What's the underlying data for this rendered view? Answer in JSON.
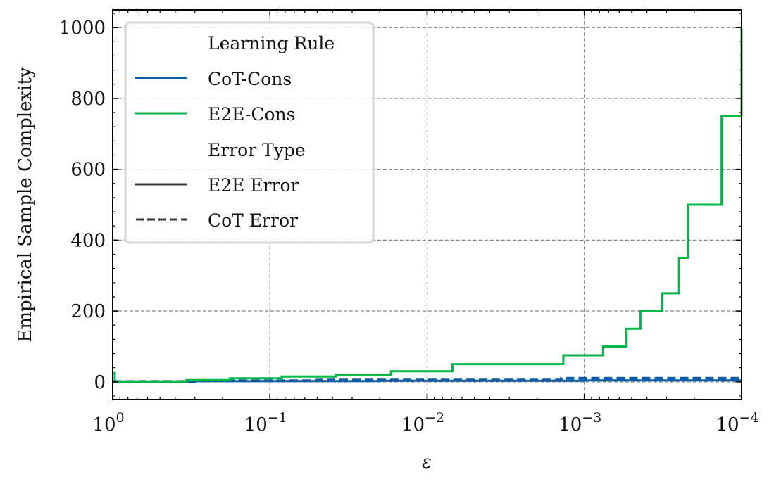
{
  "chart_data": {
    "type": "line",
    "title": "",
    "xlabel": "ε",
    "ylabel": "Empirical Sample Complexity",
    "xscale": "log",
    "x_reversed": true,
    "xlim": [
      1,
      0.0001
    ],
    "ylim": [
      -50,
      1050
    ],
    "grid": true,
    "legend_position": "top-left",
    "x_ticks": [
      {
        "value": 1,
        "mant": "10",
        "exp": "0"
      },
      {
        "value": 0.1,
        "mant": "10",
        "exp": "−1"
      },
      {
        "value": 0.01,
        "mant": "10",
        "exp": "−2"
      },
      {
        "value": 0.001,
        "mant": "10",
        "exp": "−3"
      },
      {
        "value": 0.0001,
        "mant": "10",
        "exp": "−4"
      }
    ],
    "y_ticks": [
      0,
      200,
      400,
      600,
      800,
      1000
    ],
    "legend": {
      "section1_title": "Learning Rule",
      "section2_title": "Error Type",
      "items": [
        {
          "label": "CoT-Cons",
          "color": "#0c5da5",
          "style": "solid"
        },
        {
          "label": "E2E-Cons",
          "color": "#00b945",
          "style": "solid"
        },
        {
          "label": "E2E Error",
          "color": "#333333",
          "style": "solid"
        },
        {
          "label": "CoT Error",
          "color": "#333333",
          "style": "dashed"
        }
      ]
    },
    "series": [
      {
        "name": "CoT-Cons",
        "error_type": "CoT Error",
        "color": "#0c5da5",
        "style": "dashed",
        "x": [
          1,
          0.3,
          0.05,
          0.0014,
          0.0001
        ],
        "y": [
          1,
          3,
          5,
          10,
          10
        ]
      },
      {
        "name": "CoT-Cons",
        "error_type": "E2E Error",
        "color": "#0c5da5",
        "style": "solid",
        "x": [
          1,
          0.3,
          0.02,
          0.001,
          0.0001
        ],
        "y": [
          1,
          2,
          3,
          4,
          4
        ]
      },
      {
        "name": "E2E-Cons",
        "error_type": "E2E Error",
        "color": "#00b945",
        "style": "solid",
        "x": [
          1,
          0.97,
          0.34,
          0.18,
          0.084,
          0.038,
          0.017,
          0.0069,
          0.00136,
          0.00076,
          0.00054,
          0.00044,
          0.00032,
          0.00025,
          0.00022,
          0.000134,
          0.0001
        ],
        "y": [
          25,
          1,
          5,
          10,
          15,
          20,
          30,
          50,
          75,
          100,
          150,
          200,
          250,
          350,
          500,
          750,
          1000
        ]
      }
    ]
  }
}
